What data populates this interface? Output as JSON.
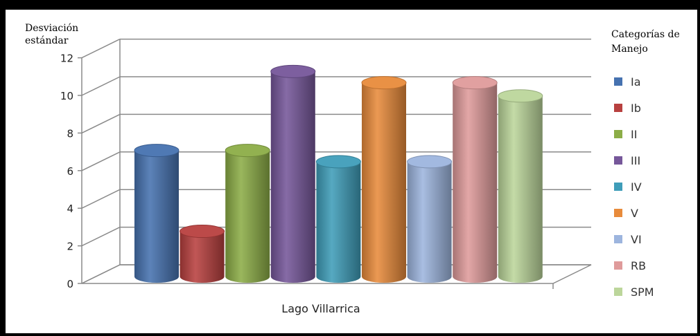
{
  "chart_data": {
    "type": "bar",
    "categories": [
      "Lago Villarrica"
    ],
    "series": [
      {
        "name": "Ia",
        "values": [
          7.0
        ],
        "color": "#4672b0"
      },
      {
        "name": "Ib",
        "values": [
          2.7
        ],
        "color": "#b8403f"
      },
      {
        "name": "II",
        "values": [
          7.0
        ],
        "color": "#8cad47"
      },
      {
        "name": "III",
        "values": [
          11.2
        ],
        "color": "#76579a"
      },
      {
        "name": "IV",
        "values": [
          6.4
        ],
        "color": "#3f9db9"
      },
      {
        "name": "V",
        "values": [
          10.6
        ],
        "color": "#e88b3b"
      },
      {
        "name": "VI",
        "values": [
          6.4
        ],
        "color": "#9db5de"
      },
      {
        "name": "RB",
        "values": [
          10.6
        ],
        "color": "#df9b9b"
      },
      {
        "name": "SPM",
        "values": [
          9.9
        ],
        "color": "#bcd69b"
      }
    ],
    "ylabel_line1": "Desviación",
    "ylabel_line2": "estándar",
    "xlabel": "Lago Villarrica",
    "ylim": [
      0,
      12
    ],
    "yticks": [
      0,
      2,
      4,
      6,
      8,
      10,
      12
    ],
    "legend_title_line1": "Categorías de",
    "legend_title_line2": "Manejo",
    "legend_position": "right",
    "grid": true
  }
}
